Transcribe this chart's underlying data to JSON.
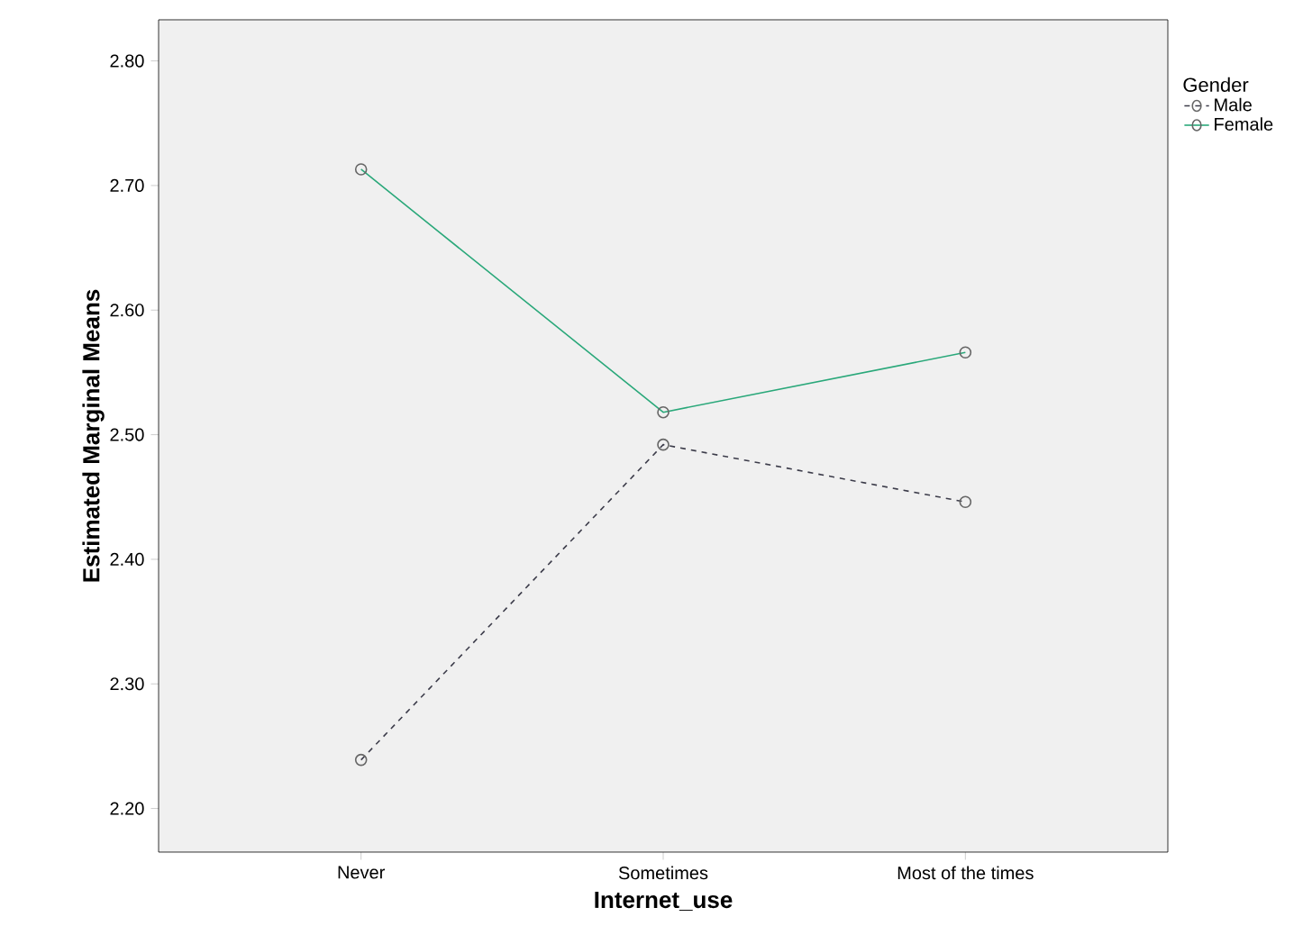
{
  "chart_data": {
    "type": "line",
    "xlabel": "Internet_use",
    "ylabel": "Estimated Marginal Means",
    "legend_title": "Gender",
    "categories": [
      "Never",
      "Sometimes",
      "Most of the times"
    ],
    "series": [
      {
        "name": "Male",
        "color": "#3c3c4a",
        "values": [
          2.239,
          2.492,
          2.446
        ],
        "line_style": "dashed"
      },
      {
        "name": "Female",
        "color": "#2aa87a",
        "values": [
          2.713,
          2.518,
          2.566
        ],
        "line_style": "solid"
      }
    ],
    "ylim": [
      2.165,
      2.833
    ],
    "yticks": [
      {
        "value": 2.2,
        "label": "2.20"
      },
      {
        "value": 2.3,
        "label": "2.30"
      },
      {
        "value": 2.4,
        "label": "2.40"
      },
      {
        "value": 2.5,
        "label": "2.50"
      },
      {
        "value": 2.6,
        "label": "2.60"
      },
      {
        "value": 2.7,
        "label": "2.70"
      },
      {
        "value": 2.8,
        "label": "2.80"
      }
    ],
    "marker": "circle",
    "legend": "right",
    "grid": false
  }
}
